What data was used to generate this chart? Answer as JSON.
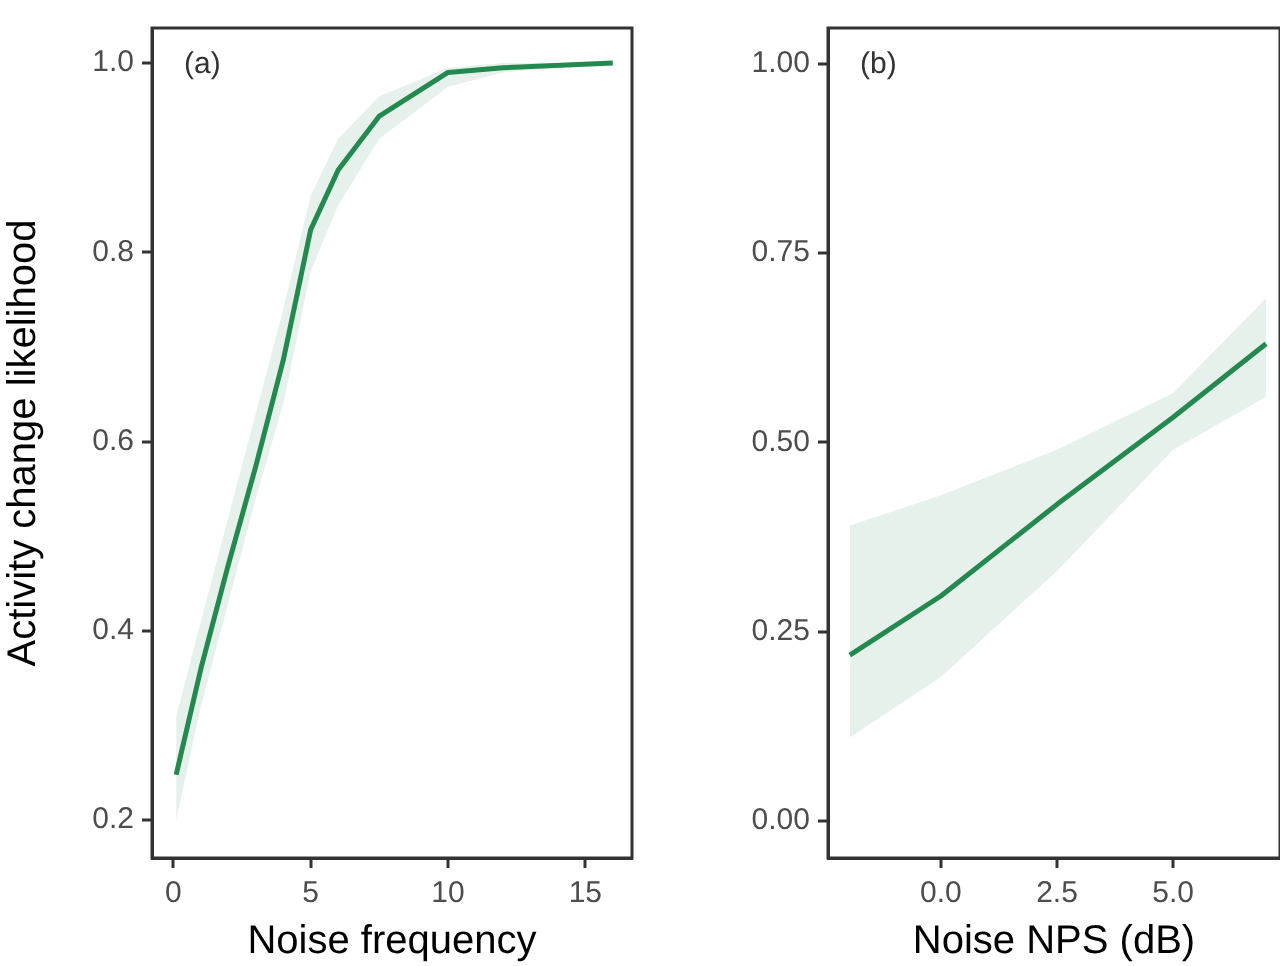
{
  "chart_data": [
    {
      "type": "line",
      "xlabel": "Noise frequency",
      "ylabel": "Activity change likelihood",
      "annotations": [
        "(a)"
      ],
      "xlim": [
        -0.78,
        16.7
      ],
      "xticks": [
        0,
        5,
        10,
        15
      ],
      "ylim": [
        0.16,
        1.037
      ],
      "yticks": [
        {
          "value": 0.2,
          "label": "0.2"
        },
        {
          "value": 0.4,
          "label": "0.4"
        },
        {
          "value": 0.6,
          "label": "0.6"
        },
        {
          "value": 0.8,
          "label": "0.8"
        },
        {
          "value": 1.0,
          "label": "1.0"
        }
      ],
      "grid": false,
      "legend": false,
      "marker": "none",
      "line_style": "solid",
      "series": [
        {
          "color": "#23894f",
          "x": [
            0.1,
            1,
            2,
            3,
            4,
            5,
            6,
            7.5,
            10,
            12,
            16
          ],
          "values": [
            0.248,
            0.36,
            0.47,
            0.574,
            0.686,
            0.824,
            0.887,
            0.944,
            0.99,
            0.995,
            1.0
          ],
          "lower": [
            0.2,
            0.32,
            0.43,
            0.54,
            0.64,
            0.78,
            0.85,
            0.92,
            0.975,
            0.99,
            1.0
          ],
          "upper": [
            0.31,
            0.41,
            0.52,
            0.63,
            0.74,
            0.86,
            0.92,
            0.965,
            0.995,
            1.0,
            1.0
          ]
        }
      ]
    },
    {
      "type": "line",
      "xlabel": "Noise NPS (dB)",
      "annotations": [
        "(b)"
      ],
      "xlim": [
        -2.43,
        7.3
      ],
      "xticks": [
        {
          "value": 0,
          "label": "0.0"
        },
        2.5,
        {
          "value": 5,
          "label": "5.0"
        }
      ],
      "ylim": [
        -0.049,
        1.047
      ],
      "yticks": [
        {
          "value": 0,
          "label": "0.00"
        },
        {
          "value": 0.25,
          "label": "0.25"
        },
        {
          "value": 0.5,
          "label": "0.50"
        },
        {
          "value": 0.75,
          "label": "0.75"
        },
        {
          "value": 1.0,
          "label": "1.00"
        }
      ],
      "grid": false,
      "legend": false,
      "marker": "none",
      "line_style": "solid",
      "series": [
        {
          "color": "#23894f",
          "x": [
            -1.96,
            0,
            2.5,
            5,
            7
          ],
          "values": [
            0.219,
            0.297,
            0.418,
            0.533,
            0.63
          ],
          "lower": [
            0.11,
            0.19,
            0.33,
            0.49,
            0.56
          ],
          "upper": [
            0.39,
            0.43,
            0.49,
            0.565,
            0.69
          ]
        }
      ]
    }
  ]
}
